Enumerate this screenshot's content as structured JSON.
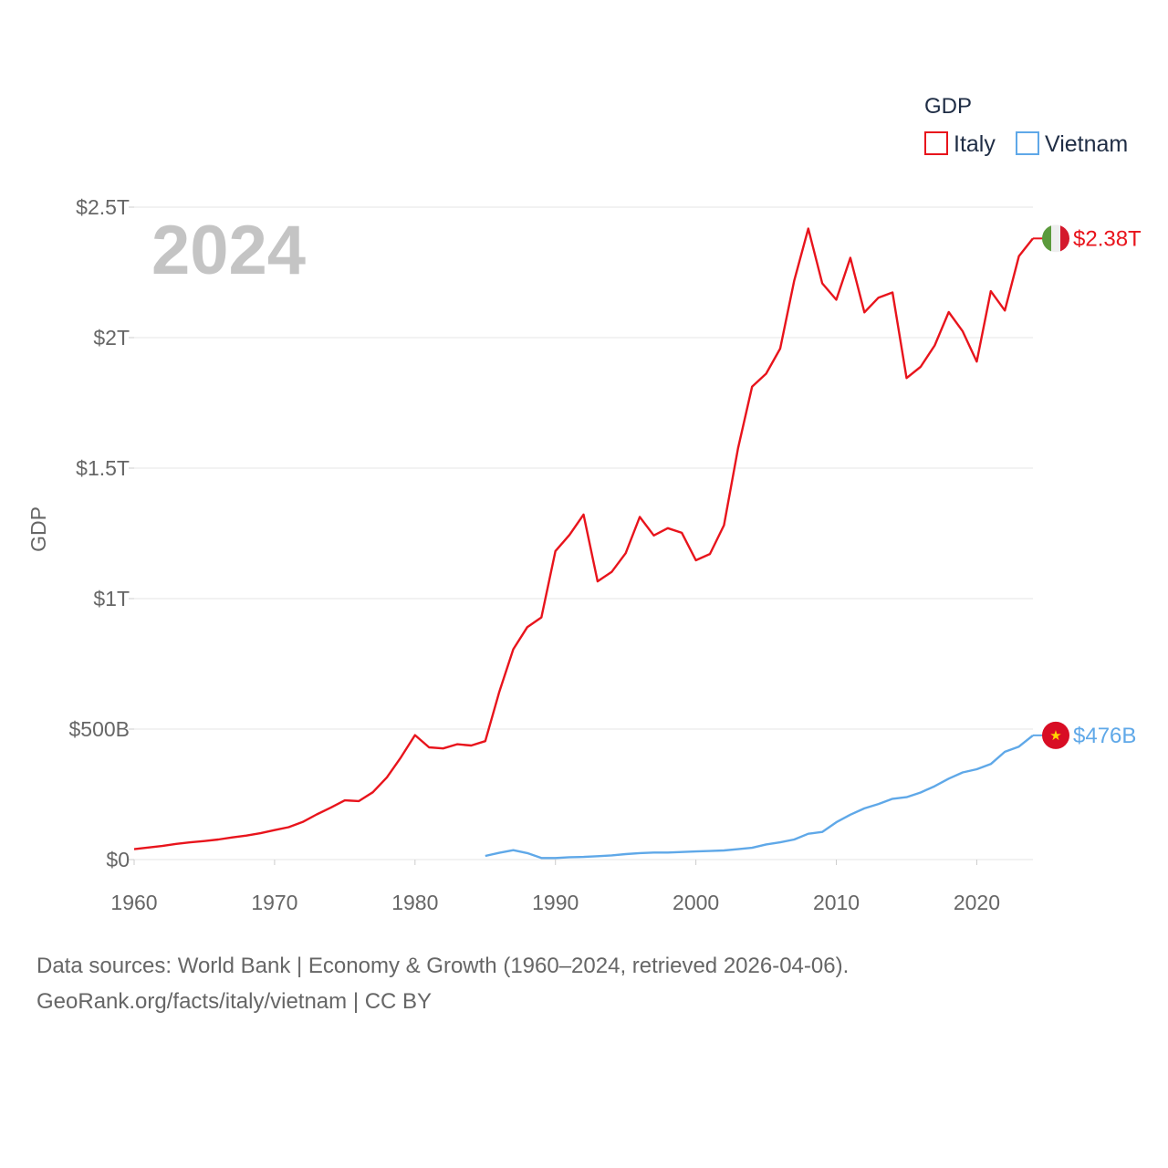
{
  "chart_data": {
    "type": "line",
    "title": "GDP",
    "current_year_label": "2024",
    "ylabel": "GDP",
    "xlabel": "",
    "xlim": [
      1960,
      2024
    ],
    "ylim": [
      0,
      2500
    ],
    "y_unit": "billion USD",
    "x_ticks": [
      {
        "value": 1960,
        "label": "1960"
      },
      {
        "value": 1970,
        "label": "1970"
      },
      {
        "value": 1980,
        "label": "1980"
      },
      {
        "value": 1990,
        "label": "1990"
      },
      {
        "value": 2000,
        "label": "2000"
      },
      {
        "value": 2010,
        "label": "2010"
      },
      {
        "value": 2020,
        "label": "2020"
      }
    ],
    "y_ticks": [
      {
        "value": 0,
        "label": "$0"
      },
      {
        "value": 500,
        "label": "$500B"
      },
      {
        "value": 1000,
        "label": "$1T"
      },
      {
        "value": 1500,
        "label": "$1.5T"
      },
      {
        "value": 2000,
        "label": "$2T"
      },
      {
        "value": 2500,
        "label": "$2.5T"
      }
    ],
    "grid": true,
    "legend_position": "top-right",
    "series": [
      {
        "name": "Italy",
        "color": "#e8141c",
        "end_label": "$2.38T",
        "flag": "italy",
        "x": [
          1960,
          1961,
          1962,
          1963,
          1964,
          1965,
          1966,
          1967,
          1968,
          1969,
          1970,
          1971,
          1972,
          1973,
          1974,
          1975,
          1976,
          1977,
          1978,
          1979,
          1980,
          1981,
          1982,
          1983,
          1984,
          1985,
          1986,
          1987,
          1988,
          1989,
          1990,
          1991,
          1992,
          1993,
          1994,
          1995,
          1996,
          1997,
          1998,
          1999,
          2000,
          2001,
          2002,
          2003,
          2004,
          2005,
          2006,
          2007,
          2008,
          2009,
          2010,
          2011,
          2012,
          2013,
          2014,
          2015,
          2016,
          2017,
          2018,
          2019,
          2020,
          2021,
          2022,
          2023,
          2024
        ],
        "values": [
          40,
          46,
          52,
          60,
          66,
          71,
          77,
          85,
          92,
          101,
          113,
          124,
          144,
          173,
          199,
          227,
          224,
          258,
          315,
          392,
          477,
          430,
          426,
          442,
          437,
          454,
          643,
          806,
          891,
          928,
          1182,
          1244,
          1322,
          1066,
          1102,
          1174,
          1313,
          1242,
          1270,
          1252,
          1147,
          1171,
          1281,
          1576,
          1812,
          1862,
          1958,
          2219,
          2418,
          2208,
          2145,
          2306,
          2097,
          2153,
          2173,
          1845,
          1888,
          1970,
          2098,
          2024,
          1908,
          2178,
          2104,
          2312,
          2380
        ]
      },
      {
        "name": "Vietnam",
        "color": "#5fa8e8",
        "end_label": "$476B",
        "flag": "vietnam",
        "x": [
          1985,
          1986,
          1987,
          1988,
          1989,
          1990,
          1991,
          1992,
          1993,
          1994,
          1995,
          1996,
          1997,
          1998,
          1999,
          2000,
          2001,
          2002,
          2003,
          2004,
          2005,
          2006,
          2007,
          2008,
          2009,
          2010,
          2011,
          2012,
          2013,
          2014,
          2015,
          2016,
          2017,
          2018,
          2019,
          2020,
          2021,
          2022,
          2023,
          2024
        ],
        "values": [
          14,
          26,
          36,
          25,
          6,
          6,
          9,
          10,
          13,
          16,
          21,
          25,
          27,
          27,
          29,
          31,
          33,
          35,
          40,
          45,
          58,
          66,
          77,
          99,
          106,
          143,
          172,
          196,
          213,
          233,
          239,
          257,
          281,
          310,
          334,
          346,
          366,
          413,
          433,
          476
        ]
      }
    ]
  },
  "footer": {
    "line1": "Data sources: World Bank | Economy & Growth (1960–2024, retrieved 2026-04-06).",
    "line2": "GeoRank.org/facts/italy/vietnam | CC BY"
  }
}
